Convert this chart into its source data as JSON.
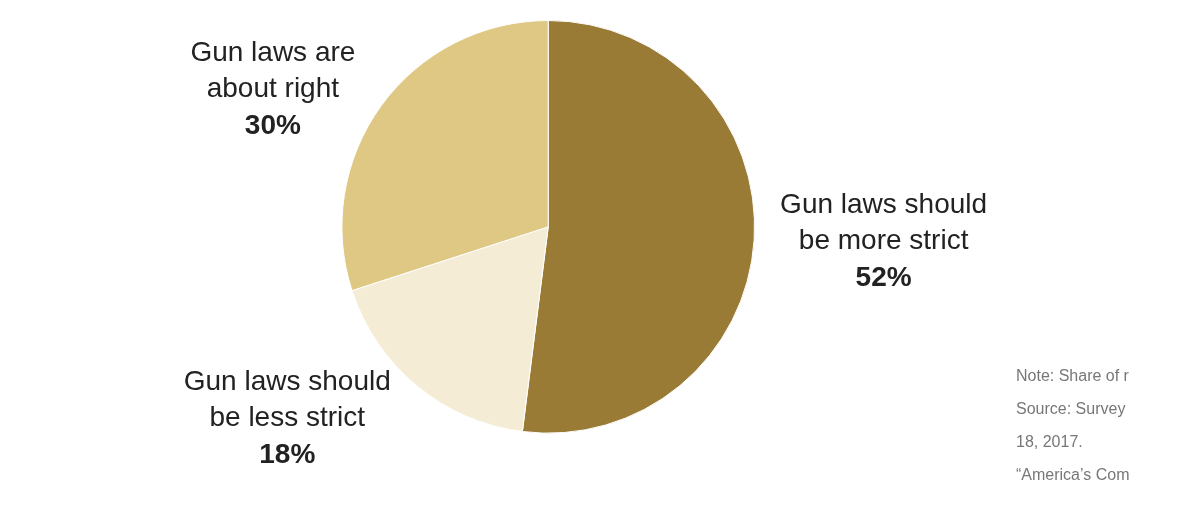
{
  "chart_data": {
    "type": "pie",
    "categories": [
      "Gun laws should be more strict",
      "Gun laws should be less strict",
      "Gun laws are about right"
    ],
    "values": [
      52,
      18,
      30
    ],
    "value_labels": [
      "52%",
      "18%",
      "30%"
    ],
    "colors": [
      "#9a7b35",
      "#f5ecd6",
      "#dfc784"
    ],
    "annotations": [
      "Note: Share of r",
      "Source: Survey",
      "18, 2017.",
      "“America’s Com"
    ]
  }
}
